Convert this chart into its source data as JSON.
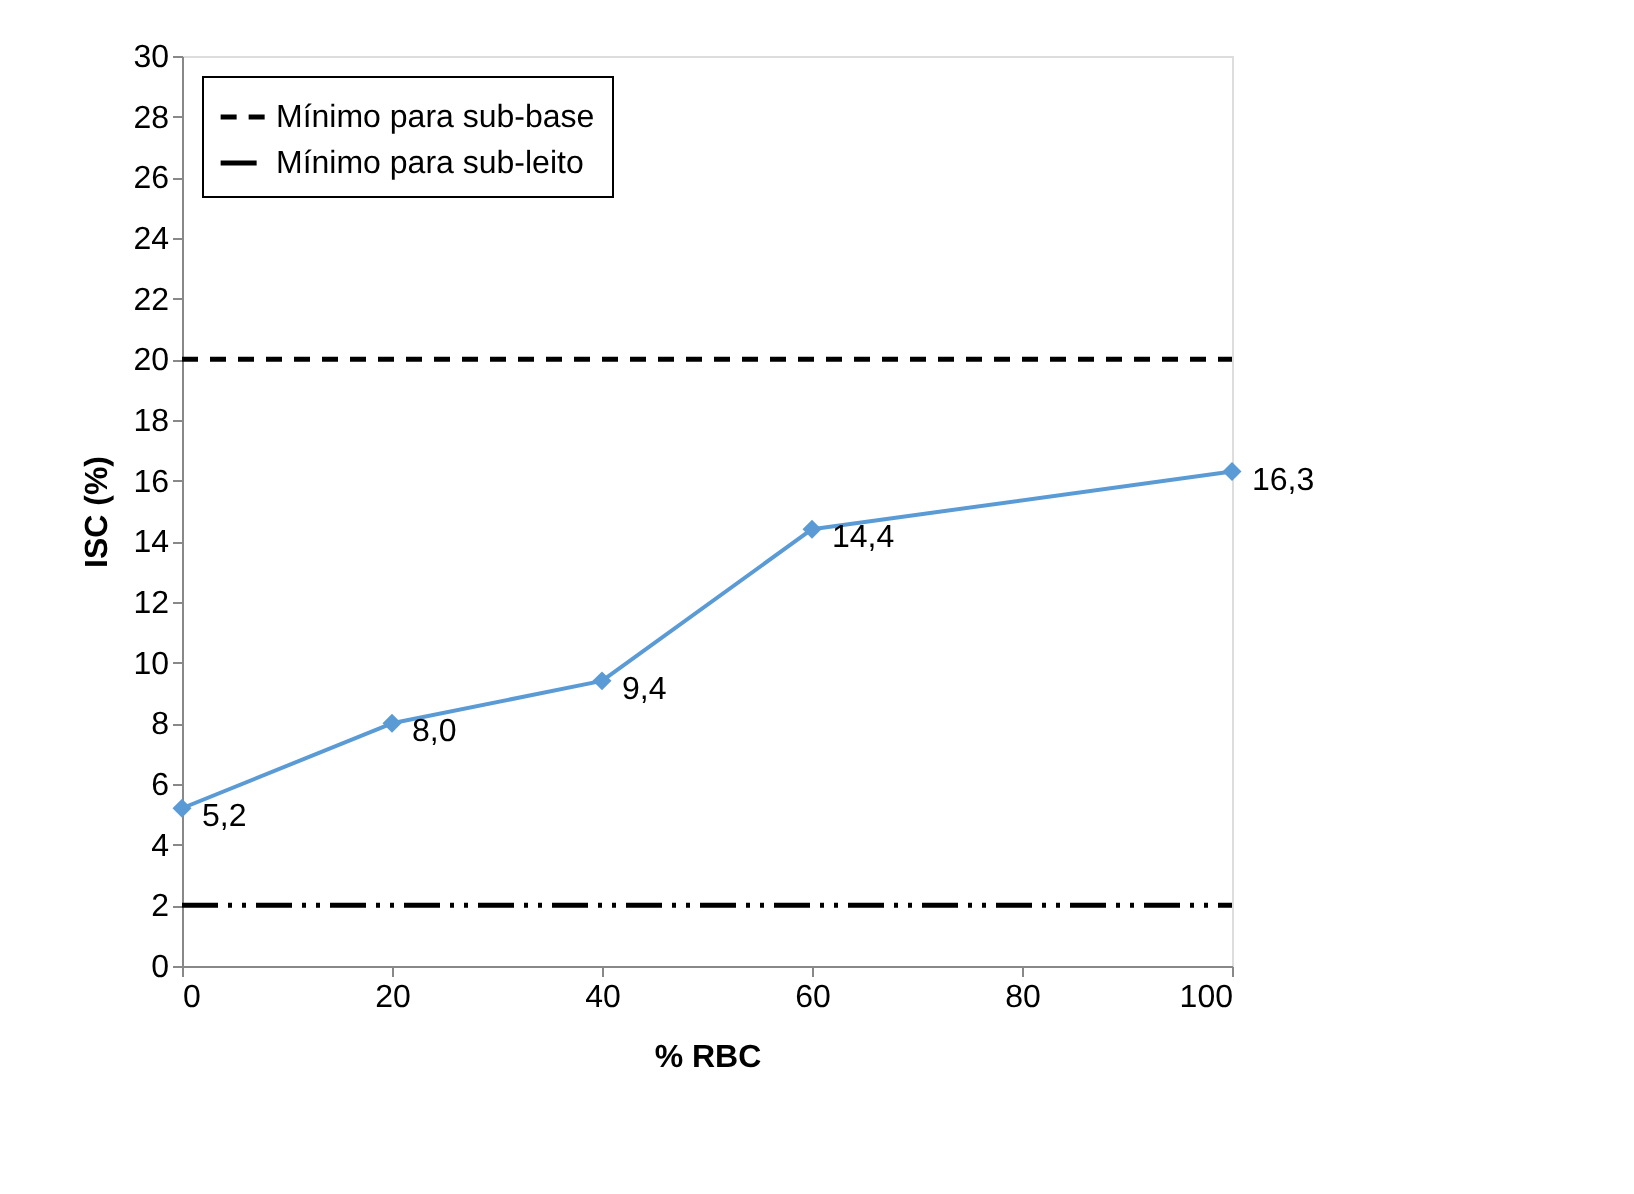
{
  "chart_data": {
    "type": "line",
    "xlabel": "% RBC",
    "ylabel": "ISC (%)",
    "x": [
      0,
      20,
      40,
      60,
      100
    ],
    "series": [
      {
        "color": "#5b9bd5",
        "values": [
          5.2,
          8.0,
          9.4,
          14.4,
          16.3
        ],
        "value_labels": [
          "5,2",
          "8,0",
          "9,4",
          "14,4",
          "16,3"
        ]
      }
    ],
    "xlim": [
      0,
      100
    ],
    "xticks": [
      0,
      20,
      40,
      60,
      80,
      100
    ],
    "ylim": [
      0,
      30
    ],
    "yticks": [
      0,
      2,
      4,
      6,
      8,
      10,
      12,
      14,
      16,
      18,
      20,
      22,
      24,
      26,
      28,
      30
    ],
    "ref_lines": [
      {
        "axis": "y",
        "value": 20,
        "label": "Mínimo para sub-base",
        "color": "#000000",
        "line_style": "dashed"
      },
      {
        "axis": "y",
        "value": 2,
        "label": "Mínimo para sub-leito",
        "color": "#000000",
        "line_style": "dashdotdot"
      }
    ],
    "marker": "diamond",
    "line_style": "solid",
    "grid": false,
    "legend": "top left"
  }
}
